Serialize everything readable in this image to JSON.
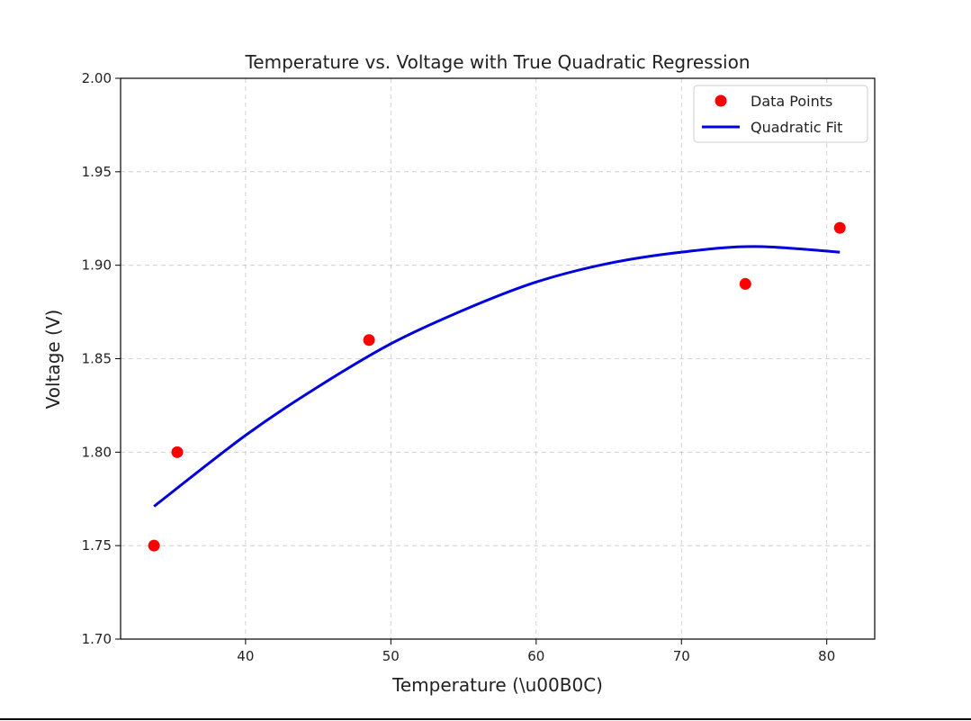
{
  "chart_data": {
    "type": "scatter",
    "title": "Temperature vs. Voltage with True Quadratic Regression",
    "xlabel": "Temperature (\\u00B0C)",
    "ylabel": "Voltage (V)",
    "xlim": [
      31.4,
      83.3
    ],
    "ylim": [
      1.7,
      2.0
    ],
    "xticks": [
      40,
      50,
      60,
      70,
      80
    ],
    "yticks": [
      1.7,
      1.75,
      1.8,
      1.85,
      1.9,
      1.95,
      2.0
    ],
    "xtick_labels": [
      "40",
      "50",
      "60",
      "70",
      "80"
    ],
    "ytick_labels": [
      "1.70",
      "1.75",
      "1.80",
      "1.85",
      "1.90",
      "1.95",
      "2.00"
    ],
    "grid": true,
    "legend_position": "top-right",
    "series": [
      {
        "name": "Data Points",
        "kind": "scatter",
        "color": "#ff0000",
        "x": [
          33.7,
          35.3,
          48.5,
          74.4,
          80.9
        ],
        "y": [
          1.75,
          1.8,
          1.86,
          1.89,
          1.92
        ]
      },
      {
        "name": "Quadratic Fit",
        "kind": "line",
        "color": "#0000dd",
        "x": [
          33.7,
          40,
          45,
          50,
          55,
          60,
          65,
          70,
          75,
          80.9
        ],
        "y": [
          1.771,
          1.809,
          1.835,
          1.858,
          1.876,
          1.891,
          1.901,
          1.907,
          1.91,
          1.907
        ]
      }
    ]
  }
}
